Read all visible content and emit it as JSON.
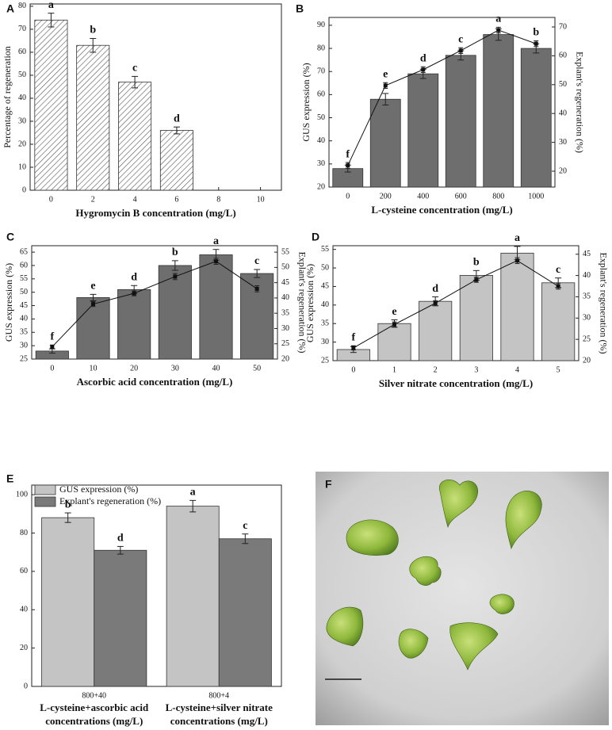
{
  "chart_data": [
    {
      "panel": "A",
      "type": "bar",
      "x_label": "Hygromycin B concentration (mg/L)",
      "y_label": "Percentage of regeneration",
      "categories": [
        "0",
        "2",
        "4",
        "6",
        "8",
        "10"
      ],
      "ylim": [
        0,
        81
      ],
      "yticks": [
        0,
        10,
        20,
        30,
        40,
        50,
        60,
        70,
        80
      ],
      "series": [
        {
          "color": "#ffffff",
          "hatch": true,
          "values": [
            74,
            63,
            47,
            26,
            0,
            0
          ],
          "errors": [
            3,
            3,
            2.5,
            1.5,
            0,
            0
          ],
          "letters": [
            "a",
            "b",
            "c",
            "d",
            null,
            null
          ]
        }
      ]
    },
    {
      "panel": "B",
      "type": "combo",
      "x_label": "L-cysteine concentration (mg/L)",
      "y_label": "GUS expression (%)",
      "y2_label": "Explant's regeneration (%)",
      "categories": [
        "0",
        "200",
        "400",
        "600",
        "800",
        "1000"
      ],
      "ylim": [
        20,
        93.4
      ],
      "yticks": [
        20,
        30,
        40,
        50,
        60,
        70,
        80,
        90
      ],
      "y2lim": [
        14.5,
        73.3
      ],
      "y2ticks": [
        20,
        30,
        40,
        50,
        60,
        70
      ],
      "series": [
        {
          "color": "#6e6e6e",
          "values": [
            28,
            58,
            69,
            77,
            86,
            80
          ],
          "errors": [
            1.5,
            2.5,
            2,
            2,
            2.5,
            2
          ],
          "letters": [
            "f",
            "e",
            "d",
            "c",
            "a",
            "b"
          ]
        },
        {
          "axis": "y2",
          "color": "#111111",
          "values": [
            22,
            49.7,
            55.2,
            61.8,
            68.9,
            64.2
          ],
          "errors": [
            1,
            1,
            1,
            1,
            1,
            1
          ]
        }
      ]
    },
    {
      "panel": "C",
      "type": "combo",
      "x_label": "Ascorbic acid concentration (mg/L)",
      "y_label": "GUS expression (%)",
      "y2_label": "Explant's regeneration (%)",
      "categories": [
        "0",
        "10",
        "20",
        "30",
        "40",
        "50"
      ],
      "ylim": [
        25,
        67.4
      ],
      "yticks": [
        25,
        30,
        35,
        40,
        45,
        50,
        55,
        60,
        65
      ],
      "y2lim": [
        20,
        57.1
      ],
      "y2ticks": [
        20,
        25,
        30,
        35,
        40,
        45,
        50,
        55
      ],
      "series": [
        {
          "color": "#6e6e6e",
          "values": [
            28,
            48,
            51,
            60,
            64,
            57
          ],
          "errors": [
            0.8,
            1.2,
            1.5,
            1.8,
            2,
            1.5
          ],
          "letters": [
            "f",
            "e",
            "d",
            "b",
            "a",
            "c"
          ]
        },
        {
          "axis": "y2",
          "color": "#111111",
          "values": [
            24,
            38,
            41.5,
            47,
            52,
            43
          ],
          "errors": [
            0.6,
            0.8,
            0.8,
            1,
            1,
            1
          ]
        }
      ]
    },
    {
      "panel": "D",
      "type": "combo",
      "x_label": "Silver nitrate concentration (mg/L)",
      "y_label": "GUS expression (%)",
      "y2_label": "Explant's regeneration (%)",
      "categories": [
        "0",
        "1",
        "2",
        "3",
        "4",
        "5"
      ],
      "ylim": [
        25,
        56
      ],
      "yticks": [
        25,
        30,
        35,
        40,
        45,
        50,
        55
      ],
      "y2lim": [
        20,
        47
      ],
      "y2ticks": [
        20,
        25,
        30,
        35,
        40,
        45
      ],
      "series": [
        {
          "color": "#c4c4c4",
          "values": [
            28,
            35,
            41,
            48,
            54,
            46
          ],
          "errors": [
            0.8,
            1,
            1.2,
            1.3,
            1.8,
            1.3
          ],
          "letters": [
            "f",
            "e",
            "d",
            "b",
            "a",
            "c"
          ]
        },
        {
          "axis": "y2",
          "color": "#111111",
          "values": [
            23,
            28.5,
            33.5,
            39,
            43.5,
            37.5
          ],
          "errors": [
            0.5,
            0.6,
            0.6,
            0.6,
            0.7,
            0.7
          ]
        }
      ]
    },
    {
      "panel": "E",
      "type": "grouped_bar",
      "categories": [
        "800+40",
        "800+4"
      ],
      "group_labels": [
        [
          "L-cysteine+ascorbic acid",
          "concentrations (mg/L)"
        ],
        [
          "L-cysteine+silver nitrate",
          "concentrations (mg/L)"
        ]
      ],
      "ylim": [
        0,
        105
      ],
      "yticks": [
        0,
        20,
        40,
        60,
        80,
        100
      ],
      "legend": "upper left",
      "series": [
        {
          "name": "GUS expression (%)",
          "color": "#c4c4c4",
          "values": [
            88,
            94
          ],
          "errors": [
            2.5,
            3
          ],
          "letters": [
            "b",
            "a"
          ]
        },
        {
          "name": "Explant's regeneration (%)",
          "color": "#7a7a7a",
          "values": [
            71,
            77
          ],
          "errors": [
            2,
            2.5
          ],
          "letters": [
            "d",
            "c"
          ]
        }
      ]
    }
  ],
  "photo": {
    "label": "F"
  }
}
